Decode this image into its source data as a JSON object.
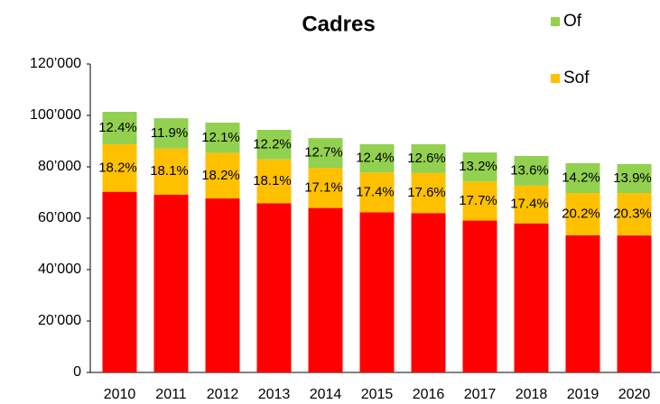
{
  "chart_data": {
    "type": "stacked_bar",
    "title": "Cadres",
    "categories": [
      "2010",
      "2011",
      "2012",
      "2013",
      "2014",
      "2015",
      "2016",
      "2017",
      "2018",
      "2019",
      "2020"
    ],
    "series": [
      {
        "color": "#ff0000",
        "values": [
          70300,
          69200,
          67700,
          65800,
          64000,
          62300,
          62000,
          59100,
          58000,
          53400,
          53300
        ]
      },
      {
        "name": "Sof",
        "color": "#ffc000",
        "values": [
          18500,
          17900,
          17700,
          17100,
          15600,
          15500,
          15600,
          15200,
          14700,
          16400,
          16500
        ],
        "share_labels": [
          "18.2%",
          "18.1%",
          "18.2%",
          "18.1%",
          "17.1%",
          "17.4%",
          "17.6%",
          "17.7%",
          "17.4%",
          "20.2%",
          "20.3%"
        ]
      },
      {
        "name": "Of",
        "color": "#92d050",
        "values": [
          12600,
          11800,
          11800,
          11500,
          11600,
          11000,
          11200,
          11300,
          11500,
          11600,
          11300
        ],
        "share_labels": [
          "12.4%",
          "11.9%",
          "12.1%",
          "12.2%",
          "12.7%",
          "12.4%",
          "12.6%",
          "13.2%",
          "13.6%",
          "14.2%",
          "13.9%"
        ]
      }
    ],
    "ylim": [
      0,
      120000
    ],
    "yticks": [
      0,
      {
        "value": 20000,
        "label": "20’000"
      },
      {
        "value": 40000,
        "label": "40’000"
      },
      {
        "value": 60000,
        "label": "60’000"
      },
      {
        "value": 80000,
        "label": "80’000"
      },
      {
        "value": 100000,
        "label": "100’000"
      },
      {
        "value": 120000,
        "label": "120’000"
      }
    ],
    "grid": false
  }
}
